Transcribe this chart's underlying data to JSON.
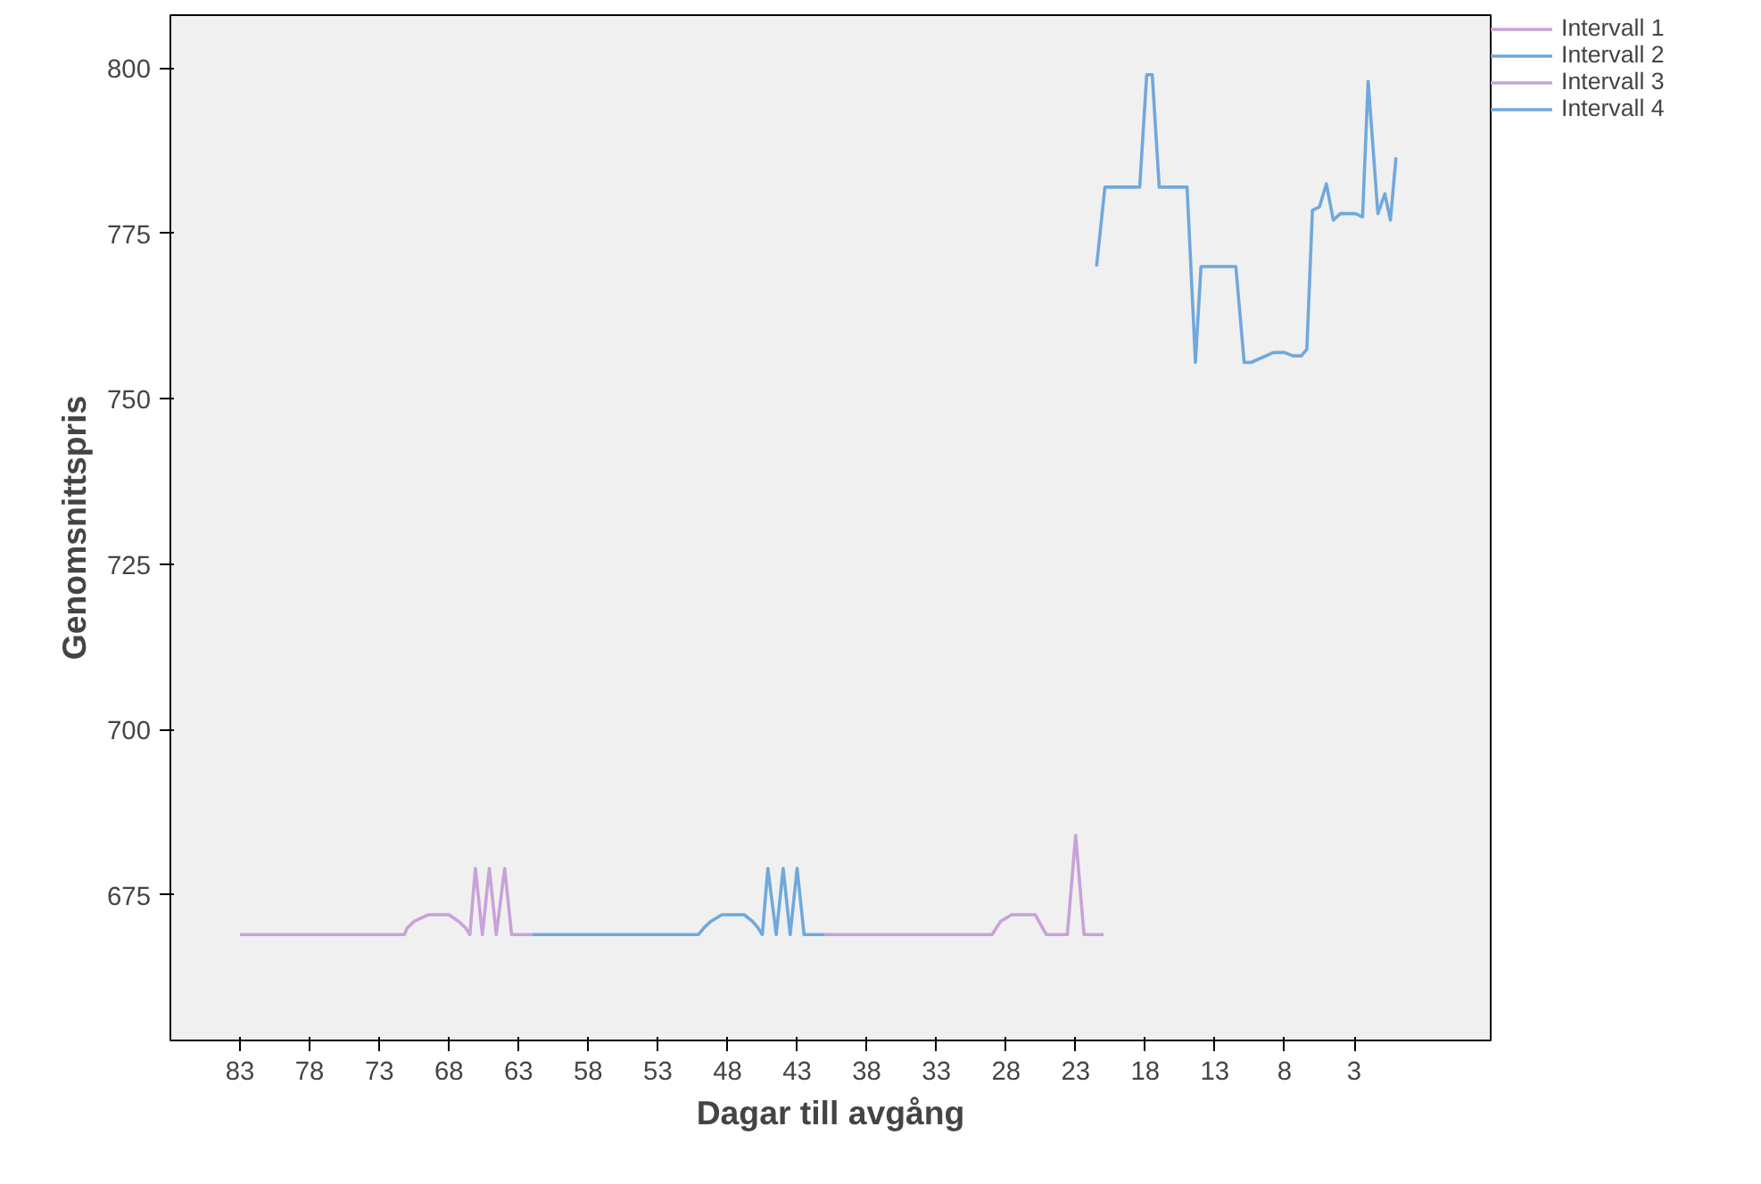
{
  "chart_data": {
    "type": "line",
    "xlabel": "Dagar till avgång",
    "ylabel": "Genomsnittspris",
    "xlim": [
      88,
      -6.8
    ],
    "xticks": [
      83,
      78,
      73,
      68,
      63,
      58,
      53,
      48,
      43,
      38,
      33,
      28,
      23,
      18,
      13,
      8,
      3
    ],
    "ylim": [
      653,
      808
    ],
    "yticks": [
      675,
      700,
      725,
      750,
      775,
      800
    ],
    "grid": false,
    "legend": "top right",
    "marker": "none",
    "line_style": "solid",
    "series": [
      {
        "name": "Intervall 1",
        "color": "#c8a2d8",
        "x": [
          83,
          71.2,
          71,
          70.5,
          69.5,
          68,
          67.3,
          66.8,
          66.5,
          66.1,
          65.6,
          65.1,
          64.6,
          64,
          63.5,
          62
        ],
        "values": [
          669,
          669,
          670,
          671,
          672,
          672,
          671,
          670,
          669,
          679,
          669,
          679,
          669,
          679,
          669,
          669
        ]
      },
      {
        "name": "Intervall 2",
        "color": "#6fa8dc",
        "x": [
          62,
          50.1,
          49.7,
          49.2,
          48.4,
          46.8,
          46.2,
          45.8,
          45.5,
          45.1,
          44.5,
          44,
          43.5,
          43,
          42.5,
          41
        ],
        "values": [
          669,
          669,
          670,
          671,
          672,
          672,
          671,
          670,
          669,
          679,
          669,
          679,
          669,
          679,
          669,
          669
        ]
      },
      {
        "name": "Intervall 3",
        "color": "#c8a2d8",
        "x": [
          41,
          29,
          28.4,
          27.6,
          25.9,
          25.1,
          23.6,
          23,
          22.4,
          21
        ],
        "values": [
          669,
          669,
          671,
          672,
          672,
          669,
          669,
          684,
          669,
          669
        ]
      },
      {
        "name": "Intervall 4",
        "color": "#6fa8dc",
        "x": [
          21.5,
          20.9,
          18.4,
          17.9,
          17.5,
          17,
          15,
          14.4,
          14,
          11.5,
          10.9,
          10.4,
          8.8,
          8,
          7.4,
          6.8,
          6.4,
          6,
          5.5,
          5,
          4.5,
          4,
          3.4,
          2.9,
          2.4,
          2,
          1.3,
          0.8,
          0.4,
          0
        ],
        "values": [
          770,
          782,
          782,
          799,
          799,
          782,
          782,
          755.5,
          770,
          770,
          755.5,
          755.5,
          757,
          757,
          756.5,
          756.5,
          757.5,
          778.5,
          779,
          782.5,
          777,
          778,
          778,
          778,
          777.5,
          798,
          778,
          781,
          777,
          786.5
        ]
      }
    ]
  }
}
